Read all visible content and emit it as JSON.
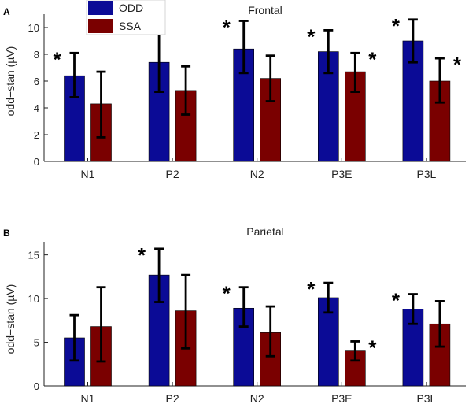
{
  "legend": {
    "items": [
      {
        "label": "ODD",
        "color": "#0b0b96"
      },
      {
        "label": "SSA",
        "color": "#7a0000"
      }
    ]
  },
  "chart_data": [
    {
      "type": "bar",
      "panel_label": "A",
      "title": "Frontal",
      "ylabel": "odd−stan (µV)",
      "categories": [
        "N1",
        "P2",
        "N2",
        "P3E",
        "P3L"
      ],
      "ylim": [
        0,
        11
      ],
      "yticks": [
        0,
        2,
        4,
        6,
        8,
        10
      ],
      "series": [
        {
          "name": "ODD",
          "color": "#0b0b96",
          "values": [
            6.4,
            7.4,
            8.4,
            8.2,
            9.0
          ],
          "err_low": [
            4.8,
            5.2,
            6.6,
            6.6,
            7.4
          ],
          "err_high": [
            8.1,
            10.1,
            10.5,
            9.8,
            10.6
          ],
          "significant": [
            true,
            false,
            true,
            true,
            true
          ]
        },
        {
          "name": "SSA",
          "color": "#7a0000",
          "values": [
            4.3,
            5.3,
            6.2,
            6.7,
            6.0
          ],
          "err_low": [
            1.8,
            3.5,
            4.5,
            5.2,
            4.4
          ],
          "err_high": [
            6.7,
            7.1,
            7.9,
            8.1,
            7.7
          ],
          "significant": [
            false,
            false,
            false,
            true,
            true
          ]
        }
      ],
      "annotation": "*",
      "grid": false
    },
    {
      "type": "bar",
      "panel_label": "B",
      "title": "Parietal",
      "ylabel": "odd−stan (µV)",
      "categories": [
        "N1",
        "P2",
        "N2",
        "P3E",
        "P3L"
      ],
      "ylim": [
        0,
        16.5
      ],
      "yticks": [
        0,
        5,
        10,
        15
      ],
      "series": [
        {
          "name": "ODD",
          "color": "#0b0b96",
          "values": [
            5.5,
            12.7,
            8.9,
            10.1,
            8.8
          ],
          "err_low": [
            2.9,
            9.6,
            6.8,
            8.4,
            7.1
          ],
          "err_high": [
            8.1,
            15.7,
            11.3,
            11.8,
            10.5
          ],
          "significant": [
            false,
            true,
            true,
            true,
            true
          ]
        },
        {
          "name": "SSA",
          "color": "#7a0000",
          "values": [
            6.8,
            8.6,
            6.1,
            4.0,
            7.1
          ],
          "err_low": [
            2.8,
            4.3,
            3.4,
            2.9,
            4.5
          ],
          "err_high": [
            11.3,
            12.7,
            9.1,
            5.1,
            9.7
          ],
          "significant": [
            false,
            false,
            false,
            true,
            false
          ]
        }
      ],
      "annotation": "*",
      "grid": false
    }
  ]
}
